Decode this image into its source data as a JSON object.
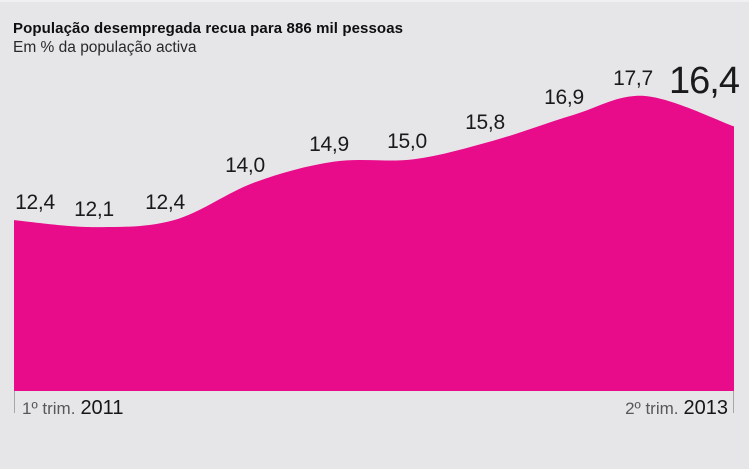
{
  "header": {
    "title": "População desempregada recua para 886 mil pessoas",
    "subtitle": "Em % da população activa"
  },
  "chart_data": {
    "type": "area",
    "title": "População desempregada recua para 886 mil pessoas",
    "subtitle": "Em % da população activa",
    "values": [
      12.4,
      12.1,
      12.4,
      14.0,
      14.9,
      15.0,
      15.8,
      16.9,
      17.7,
      16.4
    ],
    "point_labels": [
      "12,4",
      "12,1",
      "12,4",
      "14,0",
      "14,9",
      "15,0",
      "15,8",
      "16,9",
      "17,7",
      "16,4"
    ],
    "emphasized_label_index": 9,
    "x_axis": {
      "start": {
        "period": "1º trim.",
        "year": "2011"
      },
      "end": {
        "period": "2º trim.",
        "year": "2013"
      }
    },
    "ylim": [
      5.1,
      21.8
    ],
    "grid": false,
    "legend": "none",
    "area_color": "#E80B8A",
    "background_color": "#E6E6E8",
    "label_color": "#1A1A1C",
    "axis_text_color": "#58585A",
    "axis_year_color": "#161617",
    "tick_color": "#A7A7AA"
  }
}
